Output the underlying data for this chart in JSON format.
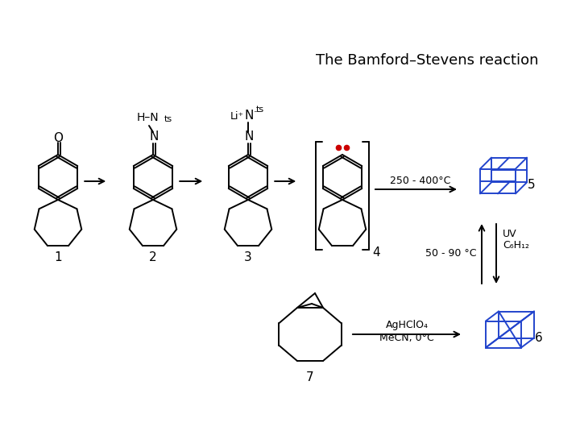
{
  "title": "The Bamford–Stevens reaction",
  "black": "#000000",
  "blue": "#2244cc",
  "red": "#cc0000",
  "bg": "#ffffff",
  "note_250_400": "250 - 400°C",
  "note_50_90": "50 - 90 °C",
  "note_uv": "UV",
  "note_c6h12": "C₆H₁₂",
  "note_agclo4": "AgHClO₄",
  "note_mecn": "MeCN, 0°C"
}
